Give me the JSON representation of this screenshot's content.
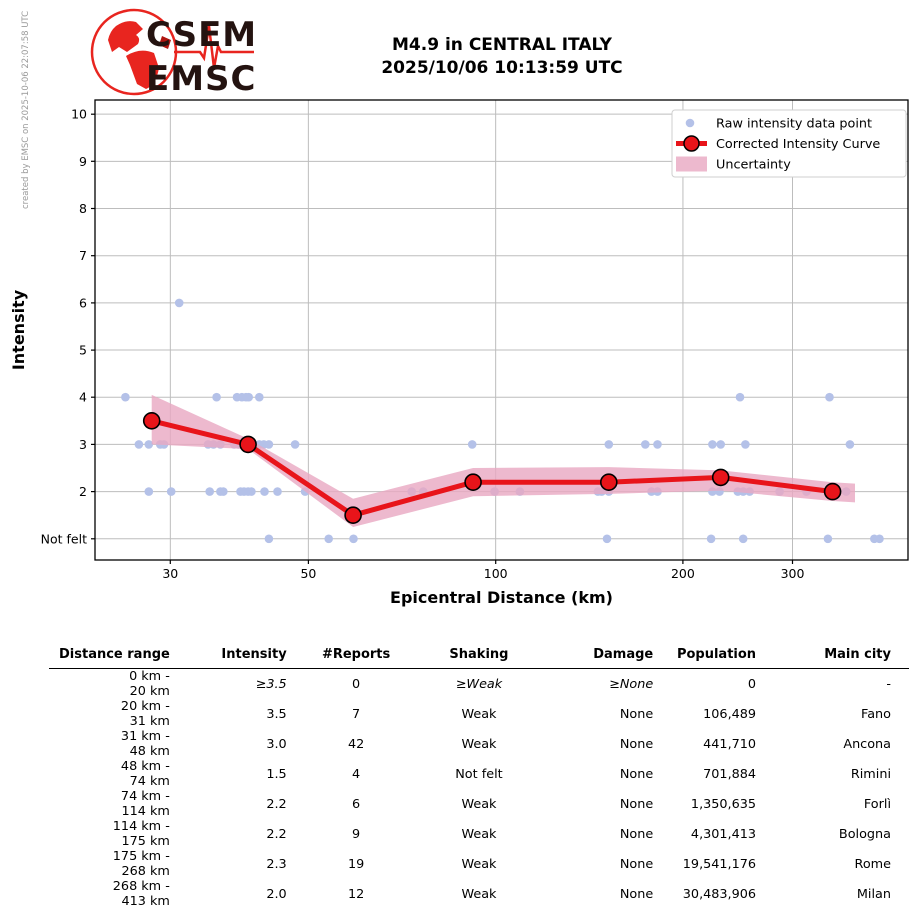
{
  "watermark": "created by EMSC on 2025-10-06 22:07:58 UTC",
  "logo": {
    "line1": "CSEM",
    "line2": "EMSC"
  },
  "title": {
    "line1": "M4.9 in CENTRAL ITALY",
    "line2": "2025/10/06 10:13:59 UTC"
  },
  "colors": {
    "raw_point": "#b4c1e8",
    "curve": "#e8141a",
    "band": "#e8a8c2",
    "grid": "#bdbdbd",
    "axis": "#000000",
    "legend_border": "#cfcfcf",
    "logo_red": "#e8251f",
    "logo_dark": "#241310",
    "watermark_gray": "#9a9a9a"
  },
  "chart_data": {
    "type": "scatter",
    "title": "",
    "xlabel": "Epicentral Distance (km)",
    "ylabel": "Intensity",
    "x_scale": "log",
    "xlim": [
      22.7,
      460
    ],
    "ylim": [
      0.55,
      10.3
    ],
    "x_ticks": [
      30,
      50,
      100,
      200,
      300
    ],
    "y_ticks": [
      {
        "v": 1,
        "label": "Not felt"
      },
      {
        "v": 2,
        "label": "2"
      },
      {
        "v": 3,
        "label": "3"
      },
      {
        "v": 4,
        "label": "4"
      },
      {
        "v": 5,
        "label": "5"
      },
      {
        "v": 6,
        "label": "6"
      },
      {
        "v": 7,
        "label": "7"
      },
      {
        "v": 8,
        "label": "8"
      },
      {
        "v": 9,
        "label": "9"
      },
      {
        "v": 10,
        "label": "10"
      }
    ],
    "grid": true,
    "legend_position": "upper right",
    "legend": [
      {
        "label": "Raw intensity data point",
        "type": "point"
      },
      {
        "label": "Corrected Intensity Curve",
        "type": "line-marker"
      },
      {
        "label": "Uncertainty",
        "type": "band"
      }
    ],
    "corrected_curve": {
      "distance_km": [
        28,
        40,
        59,
        92,
        152,
        230,
        348
      ],
      "intensity": [
        3.5,
        3.0,
        1.5,
        2.2,
        2.2,
        2.3,
        2.0
      ]
    },
    "uncertainty_band": {
      "distance_km": [
        28,
        40,
        59,
        92,
        152,
        230,
        348,
        378
      ],
      "upper": [
        4.05,
        3.12,
        1.85,
        2.5,
        2.52,
        2.45,
        2.2,
        2.17
      ],
      "lower": [
        3.0,
        2.9,
        1.25,
        1.9,
        1.95,
        2.02,
        1.8,
        1.77
      ]
    },
    "raw_points": [
      [
        31,
        6
      ],
      [
        25.4,
        4
      ],
      [
        35.6,
        4
      ],
      [
        38.4,
        4
      ],
      [
        39.1,
        4
      ],
      [
        39.7,
        4
      ],
      [
        40.1,
        4
      ],
      [
        41.7,
        4
      ],
      [
        247,
        4
      ],
      [
        344,
        4
      ],
      [
        26.7,
        3
      ],
      [
        27.7,
        3
      ],
      [
        28.9,
        3
      ],
      [
        29.3,
        3
      ],
      [
        34.5,
        3
      ],
      [
        35.2,
        3
      ],
      [
        36.1,
        3
      ],
      [
        38.0,
        3
      ],
      [
        38.6,
        3
      ],
      [
        41.7,
        3
      ],
      [
        42.4,
        3
      ],
      [
        43.2,
        3
      ],
      [
        47.6,
        3
      ],
      [
        91.7,
        3
      ],
      [
        152,
        3
      ],
      [
        174,
        3
      ],
      [
        182,
        3
      ],
      [
        223,
        3
      ],
      [
        230,
        3
      ],
      [
        252,
        3
      ],
      [
        371,
        3
      ],
      [
        27.7,
        2
      ],
      [
        30.1,
        2
      ],
      [
        34.7,
        2
      ],
      [
        36.1,
        2
      ],
      [
        36.5,
        2
      ],
      [
        38.9,
        2
      ],
      [
        39.4,
        2
      ],
      [
        40.0,
        2
      ],
      [
        40.5,
        2
      ],
      [
        42.5,
        2
      ],
      [
        44.6,
        2
      ],
      [
        49.4,
        2
      ],
      [
        73.3,
        2
      ],
      [
        76.5,
        2
      ],
      [
        99.6,
        2
      ],
      [
        109.4,
        2
      ],
      [
        146,
        2
      ],
      [
        148,
        2
      ],
      [
        152,
        2
      ],
      [
        178,
        2
      ],
      [
        182,
        2
      ],
      [
        223,
        2
      ],
      [
        229,
        2
      ],
      [
        245,
        2
      ],
      [
        250,
        2
      ],
      [
        256,
        2
      ],
      [
        286,
        2
      ],
      [
        316,
        2
      ],
      [
        366,
        2
      ],
      [
        43.2,
        1
      ],
      [
        53.9,
        1
      ],
      [
        59.1,
        1
      ],
      [
        151,
        1
      ],
      [
        222,
        1
      ],
      [
        250,
        1
      ],
      [
        342,
        1
      ],
      [
        406,
        1
      ],
      [
        414,
        1
      ]
    ]
  },
  "table": {
    "headers": [
      "Distance range",
      "Intensity",
      "#Reports",
      "Shaking",
      "Damage",
      "Population",
      "Main city"
    ],
    "rows": [
      {
        "from": "0 km",
        "to": "20 km",
        "intensity": "≥3.5",
        "reports": "0",
        "shaking": "≥Weak",
        "damage": "≥None",
        "population": "0",
        "city": "-",
        "italic": true
      },
      {
        "from": "20 km",
        "to": "31 km",
        "intensity": "3.5",
        "reports": "7",
        "shaking": "Weak",
        "damage": "None",
        "population": "106,489",
        "city": "Fano",
        "italic": false
      },
      {
        "from": "31 km",
        "to": "48 km",
        "intensity": "3.0",
        "reports": "42",
        "shaking": "Weak",
        "damage": "None",
        "population": "441,710",
        "city": "Ancona",
        "italic": false
      },
      {
        "from": "48 km",
        "to": "74 km",
        "intensity": "1.5",
        "reports": "4",
        "shaking": "Not felt",
        "damage": "None",
        "population": "701,884",
        "city": "Rimini",
        "italic": false
      },
      {
        "from": "74 km",
        "to": "114 km",
        "intensity": "2.2",
        "reports": "6",
        "shaking": "Weak",
        "damage": "None",
        "population": "1,350,635",
        "city": "Forlì",
        "italic": false
      },
      {
        "from": "114 km",
        "to": "175 km",
        "intensity": "2.2",
        "reports": "9",
        "shaking": "Weak",
        "damage": "None",
        "population": "4,301,413",
        "city": "Bologna",
        "italic": false
      },
      {
        "from": "175 km",
        "to": "268 km",
        "intensity": "2.3",
        "reports": "19",
        "shaking": "Weak",
        "damage": "None",
        "population": "19,541,176",
        "city": "Rome",
        "italic": false
      },
      {
        "from": "268 km",
        "to": "413 km",
        "intensity": "2.0",
        "reports": "12",
        "shaking": "Weak",
        "damage": "None",
        "population": "30,483,906",
        "city": "Milan",
        "italic": false
      }
    ]
  }
}
